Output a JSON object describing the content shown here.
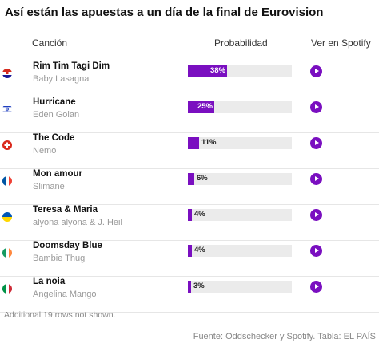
{
  "title": "Así están las apuestas a un día de la final de Eurovision",
  "headers": {
    "song": "Canción",
    "probability": "Probabilidad",
    "spotify": "Ver en Spotify"
  },
  "colors": {
    "bar": "#7a0fc0",
    "track": "#ebebeb"
  },
  "chart_data": {
    "type": "bar",
    "orientation": "horizontal",
    "xlim": [
      0,
      100
    ],
    "categories": [
      "Rim Tim Tagi Dim",
      "Hurricane",
      "The Code",
      "Mon amour",
      "Teresa & Maria",
      "Doomsday Blue",
      "La noia"
    ],
    "values": [
      38,
      25,
      11,
      6,
      4,
      4,
      3
    ],
    "value_labels": [
      "38%",
      "25%",
      "11%",
      "6%",
      "4%",
      "4%",
      "3%"
    ]
  },
  "rows": [
    {
      "song": "Rim Tim Tagi Dim",
      "artist": "Baby Lasagna",
      "flag": "croatia-flag-icon",
      "pct_label": "38%",
      "value": 38
    },
    {
      "song": "Hurricane",
      "artist": "Eden Golan",
      "flag": "israel-flag-icon",
      "pct_label": "25%",
      "value": 25
    },
    {
      "song": "The Code",
      "artist": "Nemo",
      "flag": "switzerland-flag-icon",
      "pct_label": "11%",
      "value": 11
    },
    {
      "song": "Mon amour",
      "artist": "Slimane",
      "flag": "france-flag-icon",
      "pct_label": "6%",
      "value": 6
    },
    {
      "song": "Teresa & Maria",
      "artist": "alyona alyona & J. Heil",
      "flag": "ukraine-flag-icon",
      "pct_label": "4%",
      "value": 4
    },
    {
      "song": "Doomsday Blue",
      "artist": "Bambie Thug",
      "flag": "ireland-flag-icon",
      "pct_label": "4%",
      "value": 4
    },
    {
      "song": "La noia",
      "artist": "Angelina Mango",
      "flag": "italy-flag-icon",
      "pct_label": "3%",
      "value": 3
    }
  ],
  "footnote": "Additional 19 rows not shown.",
  "source": "Fuente: Oddschecker y Spotify. Tabla: EL PAÍS"
}
